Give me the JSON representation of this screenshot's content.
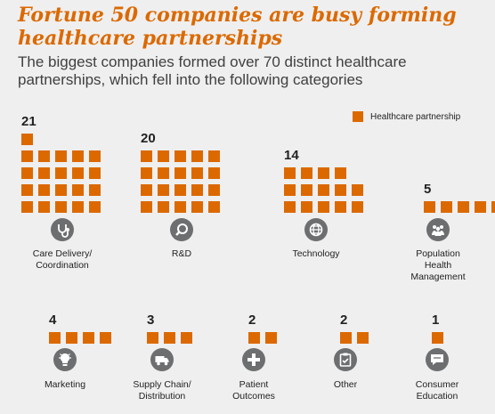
{
  "title": "Fortune 50 companies are busy forming healthcare partnerships",
  "subtitle": "The biggest companies formed over 70 distinct healthcare partnerships, which fell into the following categories",
  "legend": {
    "label": "Healthcare partnership",
    "color": "#dc6900"
  },
  "chart_data": {
    "type": "pictograph",
    "title": "Fortune 50 companies are busy forming healthcare partnerships",
    "subtitle": "The biggest companies formed over 70 distinct healthcare partnerships, which fell into the following categories",
    "unit": "Healthcare partnership",
    "categories": [
      {
        "label": "Care Delivery/\nCoordination",
        "value": 21,
        "icon": "stethoscope-icon"
      },
      {
        "label": "R&D",
        "value": 20,
        "icon": "magnifier-icon"
      },
      {
        "label": "Technology",
        "value": 14,
        "icon": "globe-icon"
      },
      {
        "label": "Population\nHealth\nManagement",
        "value": 5,
        "icon": "people-icon"
      },
      {
        "label": "Marketing",
        "value": 4,
        "icon": "lightbulb-icon"
      },
      {
        "label": "Supply Chain/\nDistribution",
        "value": 3,
        "icon": "truck-icon"
      },
      {
        "label": "Patient\nOutcomes",
        "value": 2,
        "icon": "medical-cross-icon"
      },
      {
        "label": "Other",
        "value": 2,
        "icon": "clipboard-icon"
      },
      {
        "label": "Consumer\nEducation",
        "value": 1,
        "icon": "chat-bubble-icon"
      }
    ]
  }
}
